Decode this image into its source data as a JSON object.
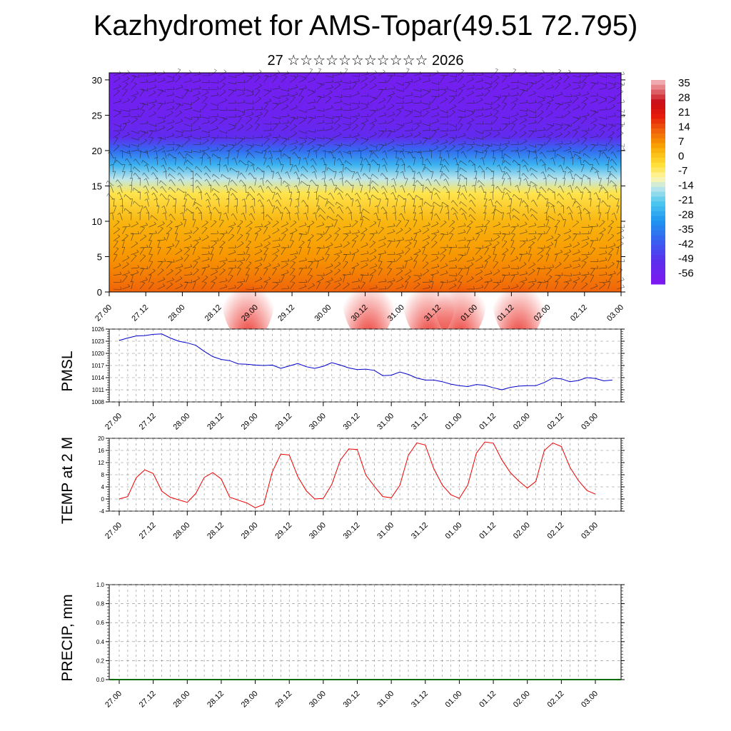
{
  "title": "Kazhydromet for AMS-Topar(49.51 72.795)",
  "subtitle": "27 ☆☆☆☆☆☆☆☆☆☆☆ 2026",
  "chart_data": [
    {
      "type": "heatmap",
      "name": "temperature-wind-profile",
      "x_tick_labels": [
        "27.00",
        "27.12",
        "28.00",
        "28.12",
        "29.00",
        "29.12",
        "30.00",
        "30.12",
        "31.00",
        "31.12",
        "01.00",
        "01.12",
        "02.00",
        "02.12",
        "03.00"
      ],
      "y_range": [
        0,
        31
      ],
      "y_ticks": [
        0,
        5,
        10,
        15,
        20,
        25,
        30
      ],
      "colorbar": {
        "labels": [
          "35",
          "28",
          "21",
          "14",
          "7",
          "0",
          "-7",
          "-14",
          "-21",
          "-28",
          "-35",
          "-42",
          "-49",
          "-56"
        ],
        "range": [
          -60,
          38
        ]
      },
      "profile": [
        {
          "level": 0,
          "value": 14
        },
        {
          "level": 5,
          "value": 8
        },
        {
          "level": 10,
          "value": 4
        },
        {
          "level": 14,
          "value": -4
        },
        {
          "level": 16,
          "value": -14
        },
        {
          "level": 18,
          "value": -25
        },
        {
          "level": 20,
          "value": -38
        },
        {
          "level": 22,
          "value": -52
        },
        {
          "level": 25,
          "value": -56
        },
        {
          "level": 31,
          "value": -58
        }
      ],
      "warm_spots_time": [
        7.6,
        14.2,
        17.5,
        19.2,
        22.4
      ],
      "colors": {
        "cold": "#6a1ee6",
        "cool": "#1ea0f0",
        "neutral": "#fff7b0",
        "warm": "#f7a200",
        "hot": "#e8140c"
      }
    },
    {
      "type": "line",
      "name": "pmsl",
      "ylabel": "PMSL",
      "y_ticks": [
        1008,
        1011,
        1014,
        1017,
        1020,
        1023,
        1026
      ],
      "ylim": [
        1008,
        1026
      ],
      "x_tick_labels": [
        "27.00",
        "27.12",
        "28.00",
        "28.12",
        "29.00",
        "29.12",
        "30.00",
        "30.12",
        "31.00",
        "31.12",
        "01.00",
        "01.12",
        "02.00",
        "02.12",
        "03.00"
      ],
      "color": "#0000cc",
      "values": [
        1023.2,
        1023.8,
        1024.3,
        1024.4,
        1024.7,
        1024.8,
        1023.8,
        1023.0,
        1022.6,
        1022.0,
        1020.5,
        1019.2,
        1018.5,
        1018.2,
        1017.4,
        1017.3,
        1017.1,
        1017.0,
        1017.1,
        1016.3,
        1016.9,
        1017.5,
        1016.7,
        1016.3,
        1016.8,
        1017.7,
        1017.1,
        1016.4,
        1016.0,
        1016.1,
        1015.8,
        1014.5,
        1014.6,
        1015.4,
        1014.8,
        1013.9,
        1013.4,
        1013.4,
        1013.0,
        1012.4,
        1012.0,
        1011.8,
        1012.3,
        1012.1,
        1011.5,
        1011.0,
        1011.6,
        1011.9,
        1012.0,
        1012.0,
        1012.8,
        1013.9,
        1013.7,
        1013.0,
        1013.3,
        1014.0,
        1013.8,
        1013.2,
        1013.4
      ]
    },
    {
      "type": "line",
      "name": "temp-2m",
      "ylabel": "TEMP at 2 M",
      "y_ticks": [
        -4,
        0,
        4,
        8,
        12,
        16,
        20
      ],
      "ylim": [
        -4,
        20
      ],
      "x_tick_labels": [
        "27.00",
        "27.12",
        "28.00",
        "28.12",
        "29.00",
        "29.12",
        "30.00",
        "30.12",
        "31.00",
        "31.12",
        "01.00",
        "01.12",
        "02.00",
        "02.12",
        "03.00"
      ],
      "color": "#ee0000",
      "values": [
        0.0,
        0.8,
        7.0,
        9.6,
        8.4,
        2.6,
        0.6,
        -0.3,
        -1.1,
        1.8,
        7.1,
        8.7,
        6.6,
        0.6,
        -0.4,
        -1.3,
        -2.9,
        -1.8,
        8.9,
        14.8,
        14.5,
        7.4,
        2.7,
        0.0,
        0.2,
        4.8,
        12.8,
        16.5,
        16.3,
        7.9,
        4.2,
        0.8,
        0.4,
        4.5,
        14.4,
        18.5,
        17.8,
        10.0,
        4.6,
        1.4,
        0.2,
        4.6,
        15.1,
        18.8,
        18.4,
        12.9,
        8.7,
        5.9,
        3.6,
        5.8,
        16.0,
        18.5,
        17.3,
        10.5,
        6.1,
        2.8,
        1.6
      ]
    },
    {
      "type": "bar",
      "name": "precip",
      "ylabel": "PRECIP, mm",
      "y_tick_labels": [
        "0.0",
        "0.2",
        "0.4",
        "0.6",
        "0.8",
        "1.0"
      ],
      "ylim": [
        0,
        1
      ],
      "x_tick_labels": [
        "27.00",
        "27.12",
        "28.00",
        "28.12",
        "29.00",
        "29.12",
        "30.00",
        "30.12",
        "31.00",
        "31.12",
        "01.00",
        "01.12",
        "02.00",
        "02.12",
        "03.00"
      ],
      "color": "#0a6e0a",
      "values": []
    }
  ]
}
